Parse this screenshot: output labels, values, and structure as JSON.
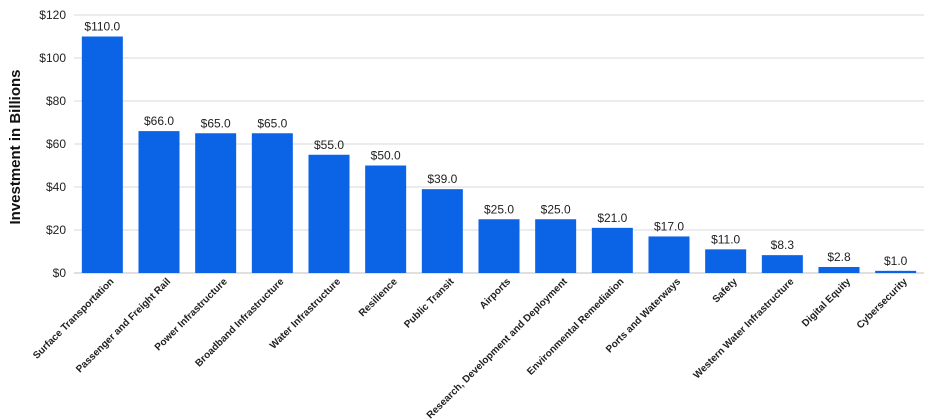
{
  "chart_data": {
    "type": "bar",
    "title": "",
    "xlabel": "",
    "ylabel": "Investment in Billions",
    "ylim": [
      0,
      120
    ],
    "yticks": [
      0,
      20,
      40,
      60,
      80,
      100,
      120
    ],
    "ytick_labels": [
      "$0",
      "$20",
      "$40",
      "$60",
      "$80",
      "$100",
      "$120"
    ],
    "grid": true,
    "legend": "none",
    "bar_color": "#0b63e5",
    "categories": [
      "Surface Transportation",
      "Passenger and Freight Rail",
      "Power Infrastructure",
      "Broadband Infrastructure",
      "Water Infrastructure",
      "Resilience",
      "Public Transit",
      "Airports",
      "Research, Development and Deployment",
      "Environmental Remediation",
      "Ports and Waterways",
      "Safety",
      "Western Water Infrastructure",
      "Digital Equity",
      "Cybersecurity"
    ],
    "values": [
      110.0,
      66.0,
      65.0,
      65.0,
      55.0,
      50.0,
      39.0,
      25.0,
      25.0,
      21.0,
      17.0,
      11.0,
      8.3,
      2.8,
      1.0
    ],
    "data_labels": [
      "$110.0",
      "$66.0",
      "$65.0",
      "$65.0",
      "$55.0",
      "$50.0",
      "$39.0",
      "$25.0",
      "$25.0",
      "$21.0",
      "$17.0",
      "$11.0",
      "$8.3",
      "$2.8",
      "$1.0"
    ]
  }
}
